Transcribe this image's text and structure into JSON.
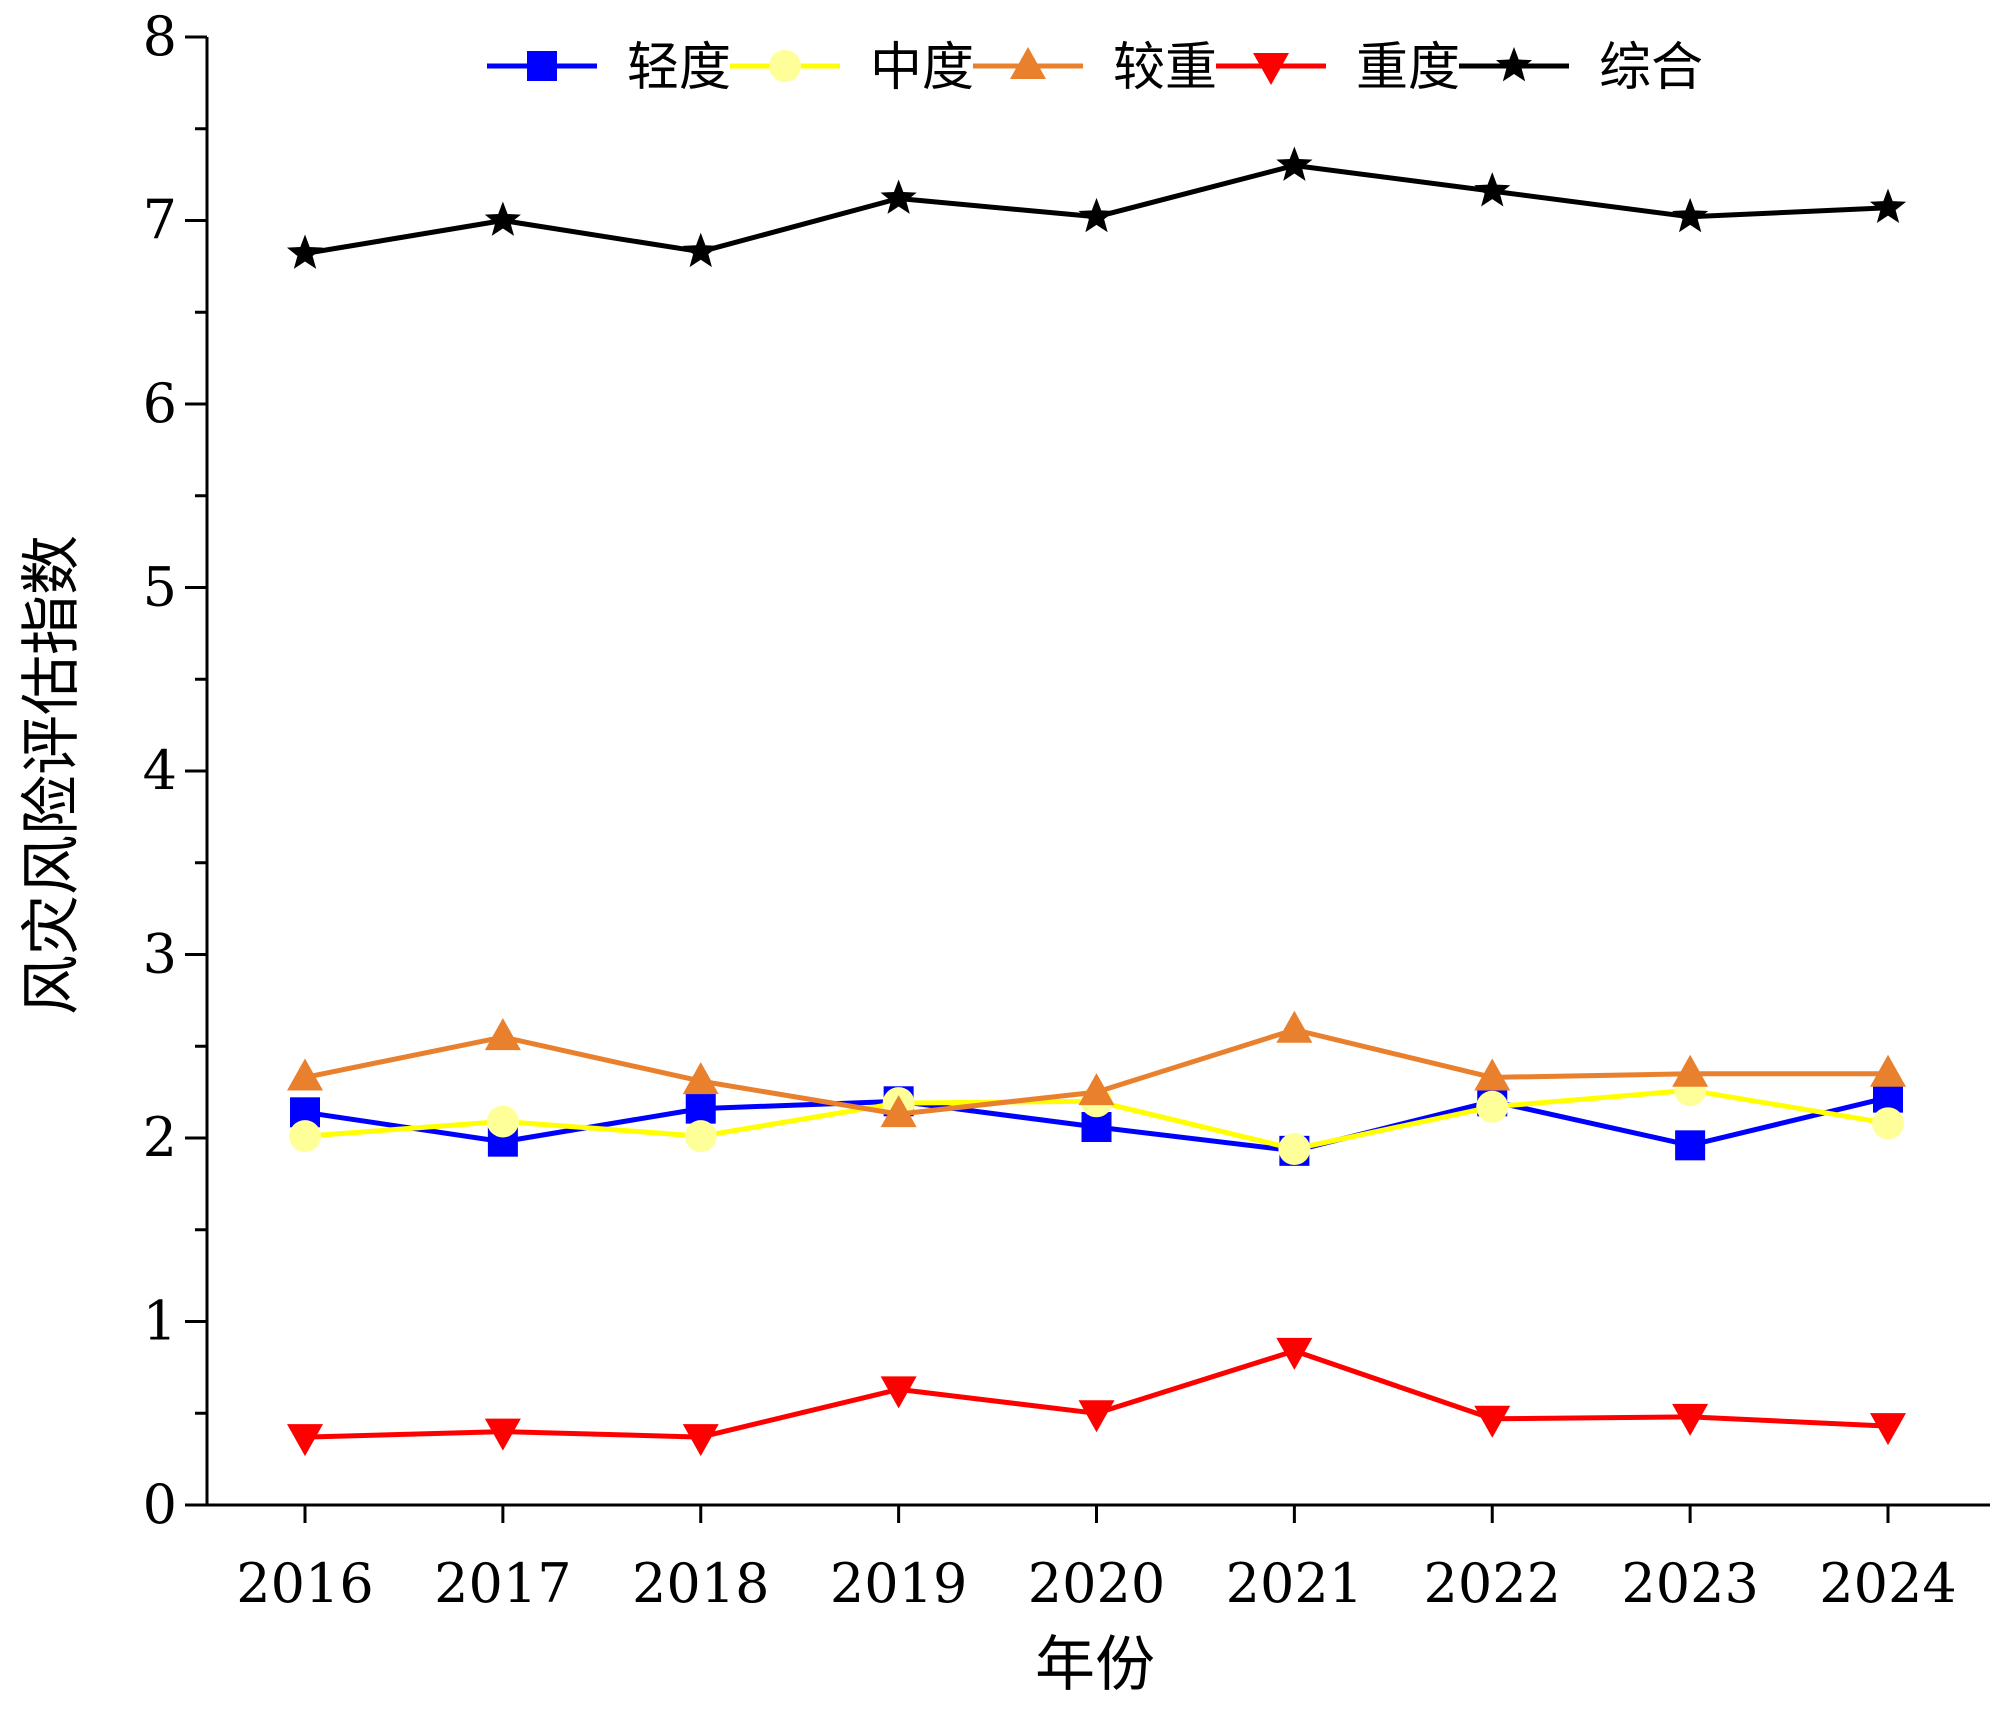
{
  "chart_data": {
    "type": "line",
    "title": "",
    "xlabel": "年份",
    "ylabel": "风灾风险评估指数",
    "ylim": [
      0,
      8
    ],
    "y_major_ticks": [
      0,
      1,
      2,
      3,
      4,
      5,
      6,
      7,
      8
    ],
    "y_minor_step": 0.5,
    "categories": [
      "2016",
      "2017",
      "2018",
      "2019",
      "2020",
      "2021",
      "2022",
      "2023",
      "2024"
    ],
    "legend_position": "top",
    "series": [
      {
        "name": "轻度",
        "color": "#0000FF",
        "marker": "square",
        "values": [
          2.14,
          1.98,
          2.16,
          2.2,
          2.06,
          1.93,
          2.2,
          1.96,
          2.22
        ]
      },
      {
        "name": "中度",
        "color": "#FFFF00",
        "marker_fill": "#FFFF99",
        "marker": "circle",
        "values": [
          2.01,
          2.09,
          2.01,
          2.19,
          2.2,
          1.94,
          2.17,
          2.26,
          2.08
        ]
      },
      {
        "name": "较重",
        "color": "#E8802E",
        "marker": "triangle-up",
        "values": [
          2.33,
          2.55,
          2.31,
          2.13,
          2.25,
          2.59,
          2.33,
          2.35,
          2.35
        ]
      },
      {
        "name": "重度",
        "color": "#FF0000",
        "marker": "triangle-down",
        "values": [
          0.37,
          0.4,
          0.37,
          0.63,
          0.5,
          0.84,
          0.47,
          0.48,
          0.43
        ]
      },
      {
        "name": "综合",
        "color": "#000000",
        "marker": "star",
        "values": [
          6.82,
          7.0,
          6.83,
          7.12,
          7.02,
          7.3,
          7.16,
          7.02,
          7.07
        ]
      }
    ]
  }
}
